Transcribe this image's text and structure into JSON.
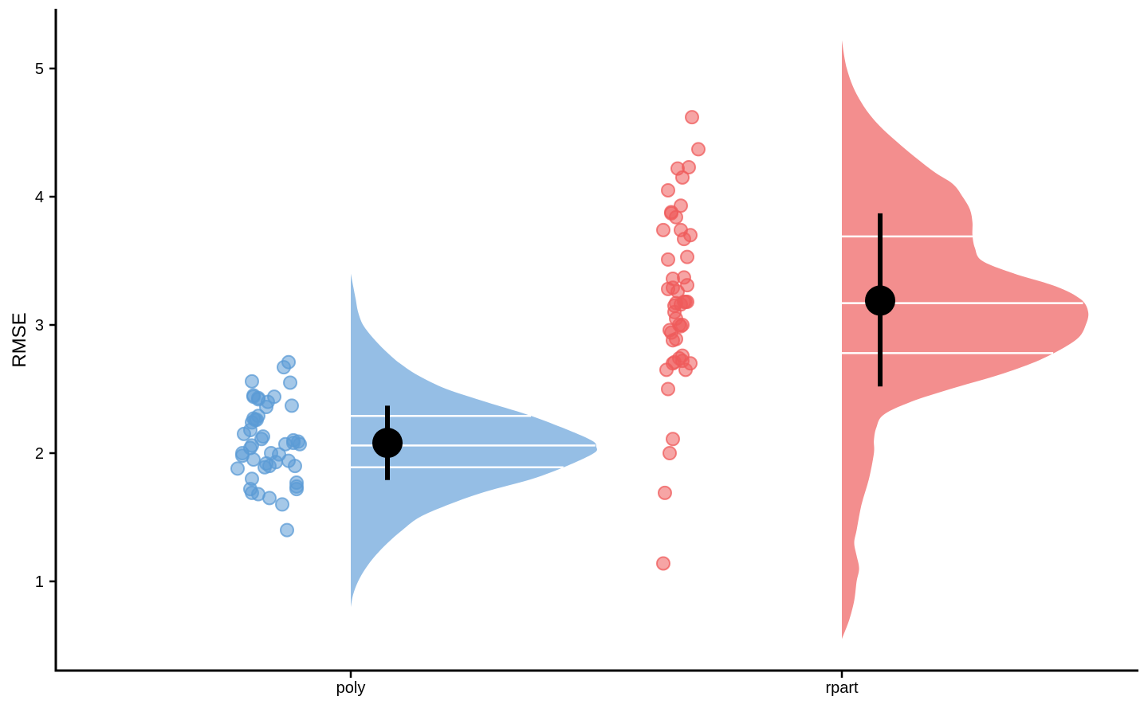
{
  "chart_data": {
    "type": "raincloud",
    "ylabel": "RMSE",
    "xlabel": "",
    "ylim": [
      0.4,
      5.5
    ],
    "yticks": [
      1,
      2,
      3,
      4,
      5
    ],
    "ytick_labels": [
      "1",
      "2",
      "3",
      "4",
      "5"
    ],
    "grid": false,
    "legend": "none",
    "categories": [
      "poly",
      "rpart"
    ],
    "groups": [
      {
        "category": "poly",
        "color": "#5B9BD5",
        "fill_color": "#95BEE5",
        "points": [
          1.72,
          1.88,
          1.98,
          2.18,
          2.24,
          2.56,
          2.44,
          2.45,
          2.42,
          2.0,
          2.04,
          2.06,
          1.8,
          1.69,
          1.95,
          2.26,
          2.27,
          2.15,
          1.68,
          2.26,
          2.29,
          2.43,
          2.11,
          2.13,
          2.36,
          2.4,
          2.44,
          2.67,
          1.65,
          1.92,
          1.89,
          1.9,
          2.0,
          1.93,
          1.99,
          1.6,
          2.07,
          1.4,
          2.71,
          1.94,
          2.55,
          2.37,
          2.1,
          2.08,
          1.9,
          1.77,
          1.74,
          1.72,
          2.09,
          2.07
        ],
        "mean": 2.08,
        "ci": [
          1.79,
          2.37
        ],
        "quantiles": [
          1.89,
          2.06,
          2.29
        ],
        "density": {
          "y": [
            0.8,
            0.9,
            1.0,
            1.1,
            1.2,
            1.3,
            1.4,
            1.5,
            1.6,
            1.7,
            1.8,
            1.9,
            2.0,
            2.05,
            2.1,
            2.2,
            2.3,
            2.4,
            2.5,
            2.6,
            2.7,
            2.8,
            2.9,
            3.0,
            3.1,
            3.2,
            3.3,
            3.4
          ],
          "val": [
            0.0,
            0.01,
            0.03,
            0.06,
            0.1,
            0.15,
            0.21,
            0.28,
            0.4,
            0.55,
            0.74,
            0.88,
            0.99,
            1.0,
            0.98,
            0.86,
            0.72,
            0.55,
            0.39,
            0.28,
            0.2,
            0.14,
            0.09,
            0.05,
            0.03,
            0.02,
            0.01,
            0.0
          ]
        }
      },
      {
        "category": "rpart",
        "color": "#EF5B5B",
        "fill_color": "#F38E8E",
        "points": [
          1.14,
          1.69,
          2.0,
          2.11,
          2.5,
          2.65,
          2.7,
          2.71,
          2.74,
          2.76,
          2.72,
          2.65,
          2.7,
          2.88,
          2.89,
          2.96,
          2.94,
          2.99,
          3.0,
          3.0,
          3.1,
          3.05,
          3.15,
          3.16,
          3.17,
          3.18,
          3.18,
          3.26,
          3.28,
          3.29,
          3.31,
          3.36,
          3.37,
          3.51,
          3.53,
          3.67,
          3.7,
          3.74,
          3.74,
          3.84,
          3.87,
          3.88,
          3.93,
          4.05,
          4.15,
          4.22,
          4.23,
          4.37,
          4.62,
          3.18
        ],
        "mean": 3.19,
        "ci": [
          2.52,
          3.87
        ],
        "quantiles": [
          2.78,
          3.17,
          3.69
        ],
        "density": {
          "y": [
            0.55,
            0.7,
            0.85,
            1.0,
            1.1,
            1.2,
            1.3,
            1.4,
            1.6,
            1.8,
            2.0,
            2.1,
            2.2,
            2.3,
            2.4,
            2.5,
            2.6,
            2.7,
            2.8,
            2.9,
            3.0,
            3.1,
            3.2,
            3.3,
            3.4,
            3.5,
            3.6,
            3.7,
            3.8,
            3.9,
            4.0,
            4.1,
            4.2,
            4.4,
            4.6,
            4.8,
            5.0,
            5.22
          ],
          "val": [
            0.0,
            0.03,
            0.05,
            0.06,
            0.07,
            0.06,
            0.05,
            0.06,
            0.08,
            0.11,
            0.13,
            0.13,
            0.14,
            0.17,
            0.28,
            0.44,
            0.62,
            0.77,
            0.88,
            0.96,
            0.99,
            1.0,
            0.97,
            0.87,
            0.7,
            0.57,
            0.54,
            0.53,
            0.53,
            0.52,
            0.49,
            0.45,
            0.37,
            0.24,
            0.13,
            0.06,
            0.02,
            0.0
          ]
        }
      }
    ]
  }
}
